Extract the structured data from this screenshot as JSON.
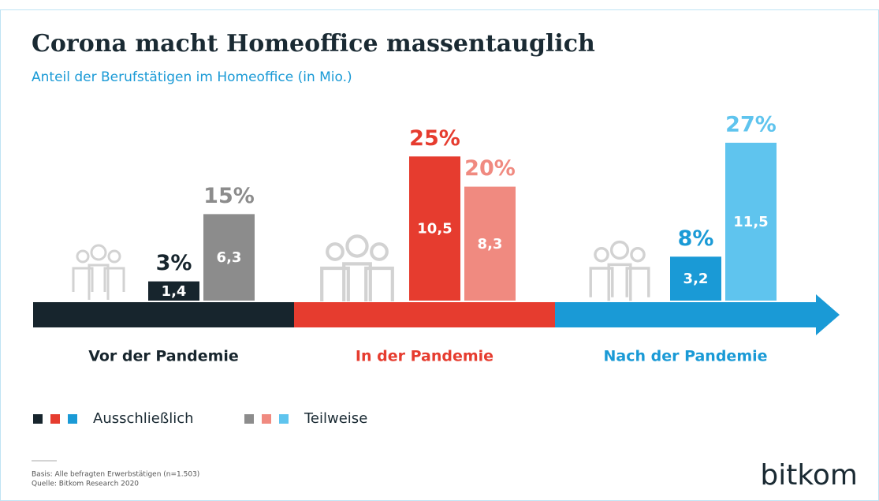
{
  "chart_data": {
    "type": "bar",
    "title": "Corona macht Homeoffice massentauglich",
    "subtitle": "Anteil der Berufstätigen im Homeoffice (in Mio.)",
    "categories": [
      "Vor der Pandemie",
      "In der Pandemie",
      "Nach der Pandemie"
    ],
    "series": [
      {
        "name": "Ausschließlich",
        "colors": [
          "#17252d",
          "#e63c2f",
          "#1a9ad6"
        ],
        "values": [
          1.4,
          10.5,
          3.2
        ],
        "value_labels": [
          "1,4",
          "10,5",
          "3,2"
        ],
        "shares": [
          3,
          25,
          8
        ],
        "share_labels": [
          "3%",
          "25%",
          "8%"
        ]
      },
      {
        "name": "Teilweise",
        "colors": [
          "#8c8c8c",
          "#f08a80",
          "#5fc4ee"
        ],
        "values": [
          6.3,
          8.3,
          11.5
        ],
        "value_labels": [
          "6,3",
          "8,3",
          "11,5"
        ],
        "shares": [
          15,
          20,
          27
        ],
        "share_labels": [
          "15%",
          "20%",
          "27%"
        ]
      }
    ],
    "notes": [
      "Basis: Alle befragten Erwerbstätigen (n=1.503)",
      "Quelle: Bitkom Research 2020"
    ],
    "brand": "bitkom"
  }
}
